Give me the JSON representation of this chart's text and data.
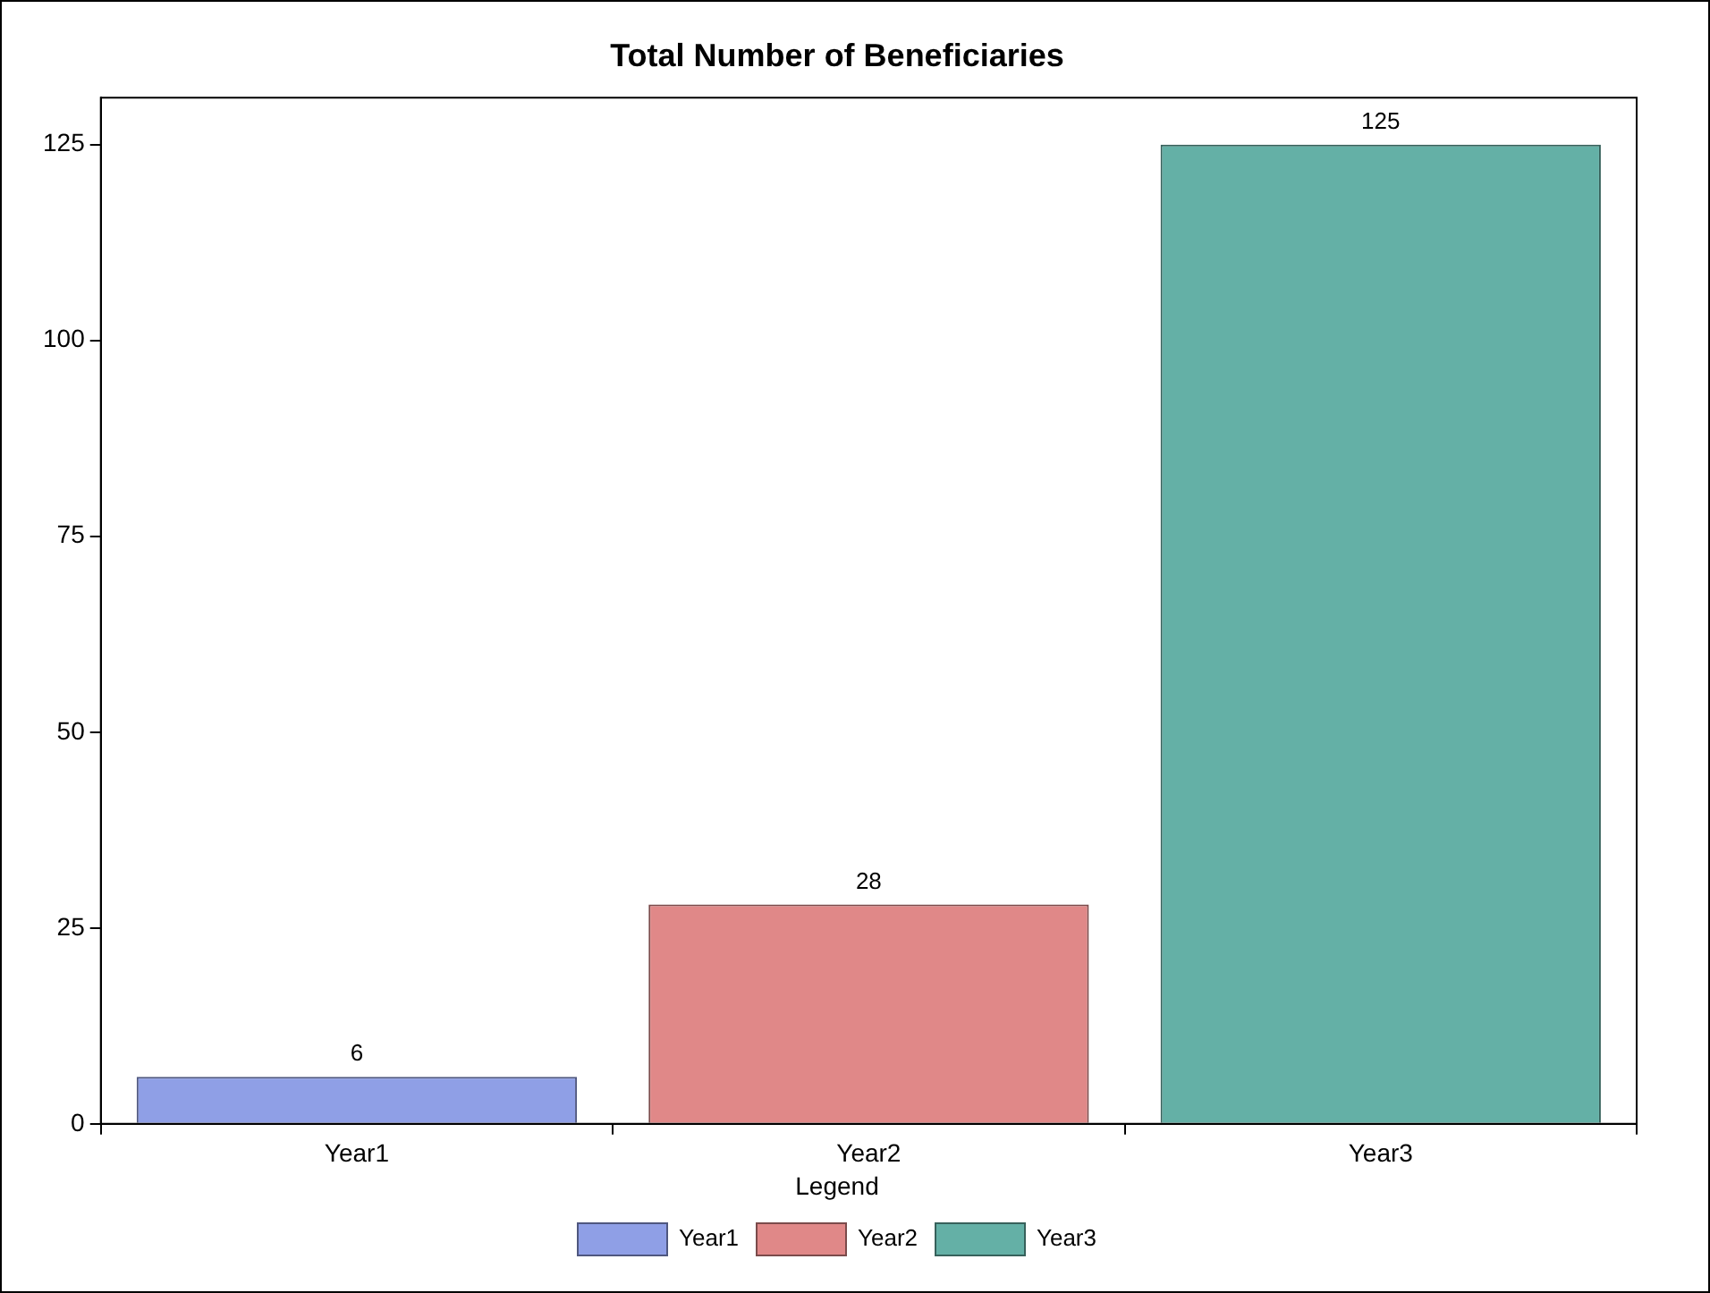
{
  "chart_data": {
    "type": "bar",
    "title": "Total Number of Beneficiaries",
    "categories": [
      "Year1",
      "Year2",
      "Year3"
    ],
    "series": [
      {
        "name": "Year1",
        "color": "#8f9fe6",
        "values": [
          6,
          null,
          null
        ]
      },
      {
        "name": "Year2",
        "color": "#e08888",
        "values": [
          null,
          28,
          null
        ]
      },
      {
        "name": "Year3",
        "color": "#64b0a6",
        "values": [
          null,
          null,
          125
        ]
      }
    ],
    "ylim": [
      0,
      131
    ],
    "yticks": [
      0,
      25,
      50,
      75,
      100,
      125
    ],
    "grid": false,
    "data_labels": true,
    "legend": "bottom",
    "legend_title": "Legend"
  }
}
